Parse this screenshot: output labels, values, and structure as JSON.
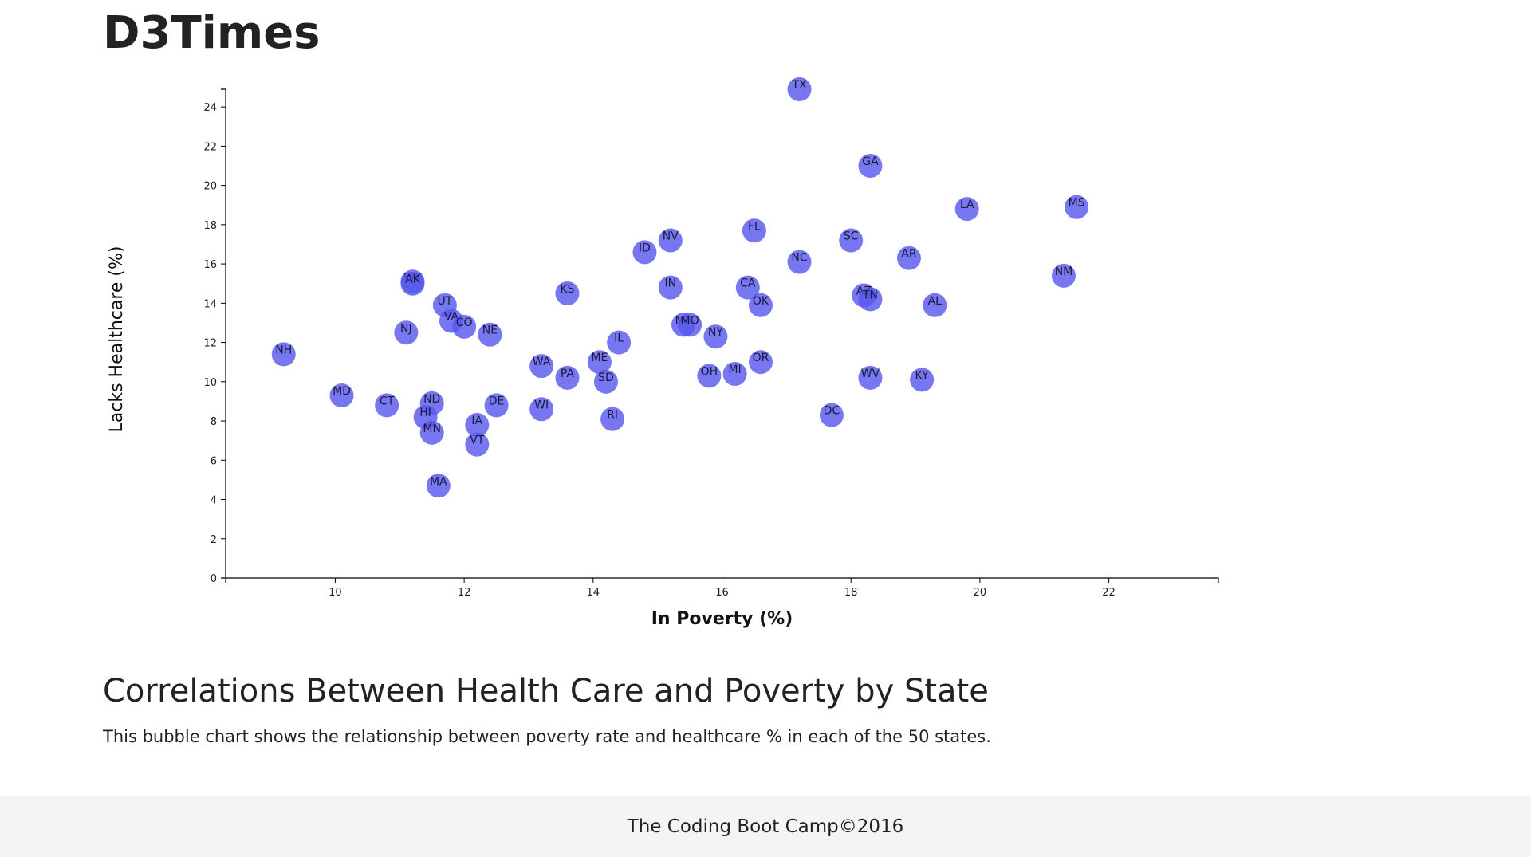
{
  "header": {
    "site_title": "D3Times"
  },
  "section": {
    "heading": "Correlations Between Health Care and Poverty by State",
    "description": "This bubble chart shows the relationship between poverty rate and healthcare % in each of the 50 states."
  },
  "footer": {
    "text": "The Coding Boot Camp©2016"
  },
  "chart_data": {
    "type": "scatter",
    "title": "",
    "xlabel": "In Poverty (%)",
    "ylabel": "Lacks Healthcare (%)",
    "xlim": [
      8.3,
      23.7
    ],
    "ylim": [
      0,
      24.9
    ],
    "xticks": [
      10,
      12,
      14,
      16,
      18,
      20,
      22
    ],
    "yticks": [
      0,
      2,
      4,
      6,
      8,
      10,
      12,
      14,
      16,
      18,
      20,
      22,
      24
    ],
    "grid": false,
    "legend": "none",
    "bubble_color": "#5555ee",
    "points": [
      {
        "label": "TX",
        "x": 17.2,
        "y": 24.9
      },
      {
        "label": "GA",
        "x": 18.3,
        "y": 21.0
      },
      {
        "label": "LA",
        "x": 19.8,
        "y": 18.8
      },
      {
        "label": "MS",
        "x": 21.5,
        "y": 18.9
      },
      {
        "label": "FL",
        "x": 16.5,
        "y": 17.7
      },
      {
        "label": "NV",
        "x": 15.2,
        "y": 17.2
      },
      {
        "label": "SC",
        "x": 18.0,
        "y": 17.2
      },
      {
        "label": "ID",
        "x": 14.8,
        "y": 16.6
      },
      {
        "label": "AR",
        "x": 18.9,
        "y": 16.3
      },
      {
        "label": "NC",
        "x": 17.2,
        "y": 16.1
      },
      {
        "label": "NM",
        "x": 21.3,
        "y": 15.4
      },
      {
        "label": "WY",
        "x": 11.2,
        "y": 15.1
      },
      {
        "label": "AK",
        "x": 11.2,
        "y": 15.0
      },
      {
        "label": "IN",
        "x": 15.2,
        "y": 14.8
      },
      {
        "label": "CA",
        "x": 16.4,
        "y": 14.8
      },
      {
        "label": "KS",
        "x": 13.6,
        "y": 14.5
      },
      {
        "label": "AZ",
        "x": 18.2,
        "y": 14.4
      },
      {
        "label": "TN",
        "x": 18.3,
        "y": 14.2
      },
      {
        "label": "OK",
        "x": 16.6,
        "y": 13.9
      },
      {
        "label": "AL",
        "x": 19.3,
        "y": 13.9
      },
      {
        "label": "UT",
        "x": 11.7,
        "y": 13.9
      },
      {
        "label": "VA",
        "x": 11.8,
        "y": 13.1
      },
      {
        "label": "CO",
        "x": 12.0,
        "y": 12.8
      },
      {
        "label": "MT",
        "x": 15.4,
        "y": 12.9
      },
      {
        "label": "MO",
        "x": 15.5,
        "y": 12.9
      },
      {
        "label": "NJ",
        "x": 11.1,
        "y": 12.5
      },
      {
        "label": "NE",
        "x": 12.4,
        "y": 12.4
      },
      {
        "label": "NY",
        "x": 15.9,
        "y": 12.3
      },
      {
        "label": "IL",
        "x": 14.4,
        "y": 12.0
      },
      {
        "label": "NH",
        "x": 9.2,
        "y": 11.4
      },
      {
        "label": "ME",
        "x": 14.1,
        "y": 11.0
      },
      {
        "label": "OR",
        "x": 16.6,
        "y": 11.0
      },
      {
        "label": "WA",
        "x": 13.2,
        "y": 10.8
      },
      {
        "label": "PA",
        "x": 13.6,
        "y": 10.2
      },
      {
        "label": "SD",
        "x": 14.2,
        "y": 10.0
      },
      {
        "label": "OH",
        "x": 15.8,
        "y": 10.3
      },
      {
        "label": "MI",
        "x": 16.2,
        "y": 10.4
      },
      {
        "label": "WV",
        "x": 18.3,
        "y": 10.2
      },
      {
        "label": "KY",
        "x": 19.1,
        "y": 10.1
      },
      {
        "label": "MD",
        "x": 10.1,
        "y": 9.3
      },
      {
        "label": "CT",
        "x": 10.8,
        "y": 8.8
      },
      {
        "label": "ND",
        "x": 11.5,
        "y": 8.9
      },
      {
        "label": "DE",
        "x": 12.5,
        "y": 8.8
      },
      {
        "label": "WI",
        "x": 13.2,
        "y": 8.6
      },
      {
        "label": "HI",
        "x": 11.4,
        "y": 8.2
      },
      {
        "label": "DC",
        "x": 17.7,
        "y": 8.3
      },
      {
        "label": "RI",
        "x": 14.3,
        "y": 8.1
      },
      {
        "label": "IA",
        "x": 12.2,
        "y": 7.8
      },
      {
        "label": "MN",
        "x": 11.5,
        "y": 7.4
      },
      {
        "label": "VT",
        "x": 12.2,
        "y": 6.8
      },
      {
        "label": "MA",
        "x": 11.6,
        "y": 4.7
      }
    ]
  }
}
